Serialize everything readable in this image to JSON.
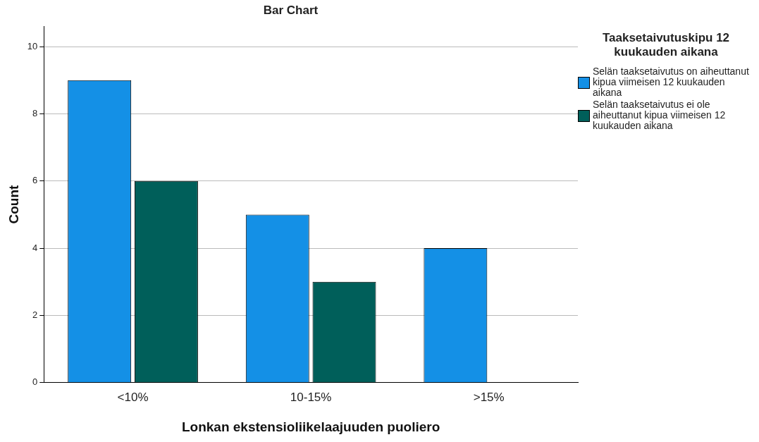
{
  "chart_data": {
    "type": "bar",
    "title": "Bar Chart",
    "xlabel": "Lonkan ekstensioliikelaajuuden puoliero",
    "ylabel": "Count",
    "legend_title": "Taaksetaivutuskipu 12 kuukauden aikana",
    "categories": [
      "<10%",
      "10-15%",
      ">15%"
    ],
    "series": [
      {
        "name": "Selän taaksetaivutus on aiheuttanut kipua viimeisen 12 kuukauden aikana",
        "color": "#1490e6",
        "values": [
          9,
          5,
          4
        ]
      },
      {
        "name": "Selän taaksetaivutus ei ole aiheuttanut kipua viimeisen 12 kuukauden aikana",
        "color": "#005f5a",
        "values": [
          6,
          3,
          null
        ]
      }
    ],
    "ylim": [
      0,
      10.6
    ],
    "yticks": [
      0,
      2,
      4,
      6,
      8,
      10
    ],
    "grid": "y",
    "legend": "right"
  }
}
